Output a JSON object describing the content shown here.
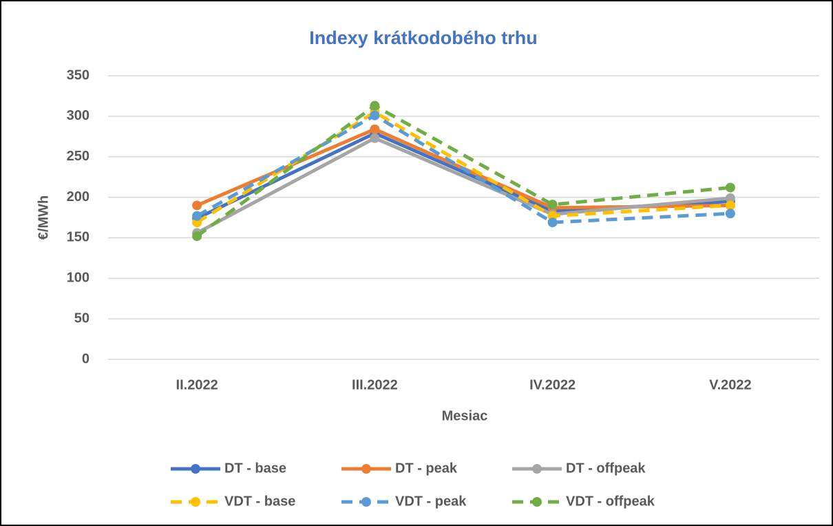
{
  "chart_data": {
    "type": "line",
    "title": "Indexy krátkodobého trhu",
    "x_label": "Mesiac",
    "y_label": "€/MWh",
    "categories": [
      "II.2022",
      "III.2022",
      "IV.2022",
      "V.2022"
    ],
    "ylim": [
      0,
      350
    ],
    "yticks": [
      0,
      50,
      100,
      150,
      200,
      250,
      300,
      350
    ],
    "grid": true,
    "legend": "bottom",
    "series": [
      {
        "name": "DT - base",
        "color": "#4472c4",
        "dashed": false,
        "values": [
          174,
          279,
          183,
          195
        ]
      },
      {
        "name": "DT - peak",
        "color": "#ed7d31",
        "dashed": false,
        "values": [
          190,
          284,
          187,
          190
        ]
      },
      {
        "name": "DT - offpeak",
        "color": "#a5a5a5",
        "dashed": false,
        "values": [
          156,
          273,
          179,
          199
        ]
      },
      {
        "name": "VDT - base",
        "color": "#ffc000",
        "dashed": true,
        "values": [
          169,
          305,
          177,
          190
        ]
      },
      {
        "name": "VDT - peak",
        "color": "#5b9bd5",
        "dashed": true,
        "values": [
          177,
          301,
          169,
          180
        ]
      },
      {
        "name": "VDT - offpeak",
        "color": "#70ad47",
        "dashed": true,
        "values": [
          152,
          313,
          191,
          212
        ]
      }
    ]
  }
}
